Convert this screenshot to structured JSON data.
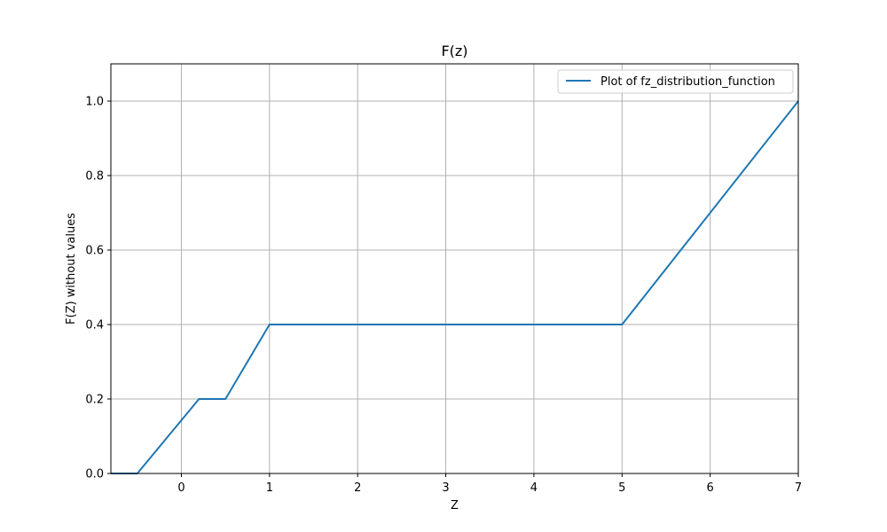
{
  "chart_data": {
    "type": "line",
    "title": "F(z)",
    "xlabel": "Z",
    "ylabel": "F(Z) without values",
    "xlim": [
      -0.8,
      7
    ],
    "ylim": [
      0,
      1.1
    ],
    "xticks": [
      0,
      1,
      2,
      3,
      4,
      5,
      6,
      7
    ],
    "yticks": [
      0.0,
      0.2,
      0.4,
      0.6,
      0.8,
      1.0
    ],
    "xtick_labels": [
      "0",
      "1",
      "2",
      "3",
      "4",
      "5",
      "6",
      "7"
    ],
    "ytick_labels": [
      "0.0",
      "0.2",
      "0.4",
      "0.6",
      "0.8",
      "1.0"
    ],
    "grid": true,
    "legend_position": "top-right",
    "series": [
      {
        "name": "Plot of fz_distribution_function",
        "color": "#1f77b4",
        "x": [
          -0.8,
          -0.5,
          0.2,
          0.5,
          1.0,
          5.0,
          7.0
        ],
        "y": [
          0.0,
          0.0,
          0.2,
          0.2,
          0.4,
          0.4,
          1.0
        ]
      }
    ]
  }
}
